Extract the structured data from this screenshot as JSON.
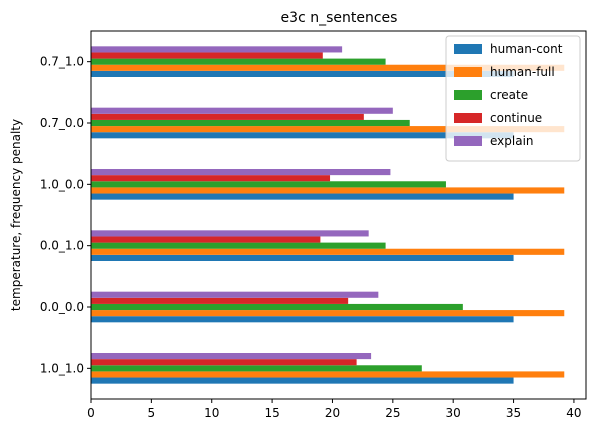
{
  "chart_data": {
    "type": "bar",
    "orientation": "horizontal",
    "title": "e3c n_sentences",
    "xlabel": "",
    "ylabel": "temperature, frequency penalty",
    "xlim": [
      0,
      41
    ],
    "xticks": [
      0,
      5,
      10,
      15,
      20,
      25,
      30,
      35,
      40
    ],
    "categories": [
      "1.0_1.0",
      "0.0_0.0",
      "0.0_1.0",
      "1.0_0.0",
      "0.7_0.0",
      "0.7_1.0"
    ],
    "series": [
      {
        "name": "human-cont",
        "color": "#1f77b4",
        "values": [
          35.0,
          35.0,
          35.0,
          35.0,
          35.0,
          35.0
        ]
      },
      {
        "name": "human-full",
        "color": "#ff7f0e",
        "values": [
          39.2,
          39.2,
          39.2,
          39.2,
          39.2,
          39.2
        ]
      },
      {
        "name": "create",
        "color": "#2ca02c",
        "values": [
          27.4,
          30.8,
          24.4,
          29.4,
          26.4,
          24.4
        ]
      },
      {
        "name": "continue",
        "color": "#d62728",
        "values": [
          22.0,
          21.3,
          19.0,
          19.8,
          22.6,
          19.2
        ]
      },
      {
        "name": "explain",
        "color": "#9467bd",
        "values": [
          23.2,
          23.8,
          23.0,
          24.8,
          25.0,
          20.8
        ]
      }
    ],
    "legend": {
      "position": "top-right"
    },
    "grid": false
  }
}
